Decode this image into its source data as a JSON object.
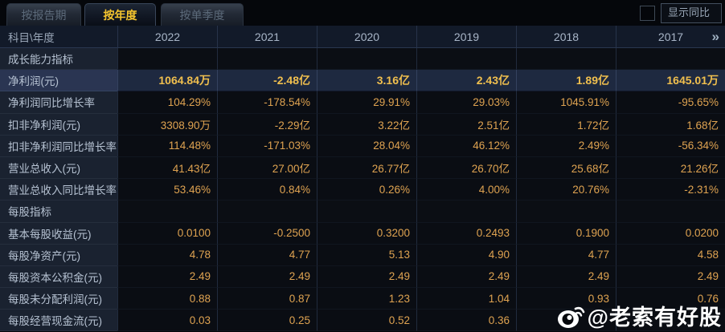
{
  "tabs": [
    {
      "label": "按报告期",
      "active": false
    },
    {
      "label": "按年度",
      "active": true
    },
    {
      "label": "按单季度",
      "active": false
    }
  ],
  "controls": {
    "show_yoy_label": "显示同比",
    "checkbox_checked": false
  },
  "table": {
    "corner_header": "科目\\年度",
    "year_columns": [
      "2022",
      "2021",
      "2020",
      "2019",
      "2018",
      "2017"
    ],
    "more_columns_icon": "»",
    "rows": [
      {
        "type": "section",
        "label": "成长能力指标",
        "values": [
          "",
          "",
          "",
          "",
          "",
          ""
        ]
      },
      {
        "type": "data",
        "highlight": true,
        "label": "净利润(元)",
        "values": [
          "1064.84万",
          "-2.48亿",
          "3.16亿",
          "2.43亿",
          "1.89亿",
          "1645.01万"
        ]
      },
      {
        "type": "data",
        "highlight": false,
        "label": "净利润同比增长率",
        "values": [
          "104.29%",
          "-178.54%",
          "29.91%",
          "29.03%",
          "1045.91%",
          "-95.65%"
        ]
      },
      {
        "type": "data",
        "highlight": false,
        "label": "扣非净利润(元)",
        "values": [
          "3308.90万",
          "-2.29亿",
          "3.22亿",
          "2.51亿",
          "1.72亿",
          "1.68亿"
        ]
      },
      {
        "type": "data",
        "highlight": false,
        "label": "扣非净利润同比增长率",
        "values": [
          "114.48%",
          "-171.03%",
          "28.04%",
          "46.12%",
          "2.49%",
          "-56.34%"
        ]
      },
      {
        "type": "data",
        "highlight": false,
        "label": "营业总收入(元)",
        "values": [
          "41.43亿",
          "27.00亿",
          "26.77亿",
          "26.70亿",
          "25.68亿",
          "21.26亿"
        ]
      },
      {
        "type": "data",
        "highlight": false,
        "label": "营业总收入同比增长率",
        "values": [
          "53.46%",
          "0.84%",
          "0.26%",
          "4.00%",
          "20.76%",
          "-2.31%"
        ]
      },
      {
        "type": "section",
        "label": "每股指标",
        "values": [
          "",
          "",
          "",
          "",
          "",
          ""
        ]
      },
      {
        "type": "data",
        "highlight": false,
        "label": "基本每股收益(元)",
        "values": [
          "0.0100",
          "-0.2500",
          "0.3200",
          "0.2493",
          "0.1900",
          "0.0200"
        ]
      },
      {
        "type": "data",
        "highlight": false,
        "label": "每股净资产(元)",
        "values": [
          "4.78",
          "4.77",
          "5.13",
          "4.90",
          "4.77",
          "4.58"
        ]
      },
      {
        "type": "data",
        "highlight": false,
        "label": "每股资本公积金(元)",
        "values": [
          "2.49",
          "2.49",
          "2.49",
          "2.49",
          "2.49",
          "2.49"
        ]
      },
      {
        "type": "data",
        "highlight": false,
        "label": "每股未分配利润(元)",
        "values": [
          "0.88",
          "0.87",
          "1.23",
          "1.04",
          "0.93",
          "0.76"
        ]
      },
      {
        "type": "data",
        "highlight": false,
        "label": "每股经营现金流(元)",
        "values": [
          "0.03",
          "0.25",
          "0.52",
          "0.36",
          "",
          ""
        ]
      }
    ]
  },
  "watermark": {
    "icon": "weibo-logo",
    "text": "@老索有好股"
  },
  "colors": {
    "accent_gold": "#f5c52e",
    "value_gold": "#dfa351",
    "highlight_row_bg": "#1e2940",
    "label_col_bg": "#1a2230",
    "header_row_bg": "#121a29",
    "page_bg": "#05070b"
  }
}
